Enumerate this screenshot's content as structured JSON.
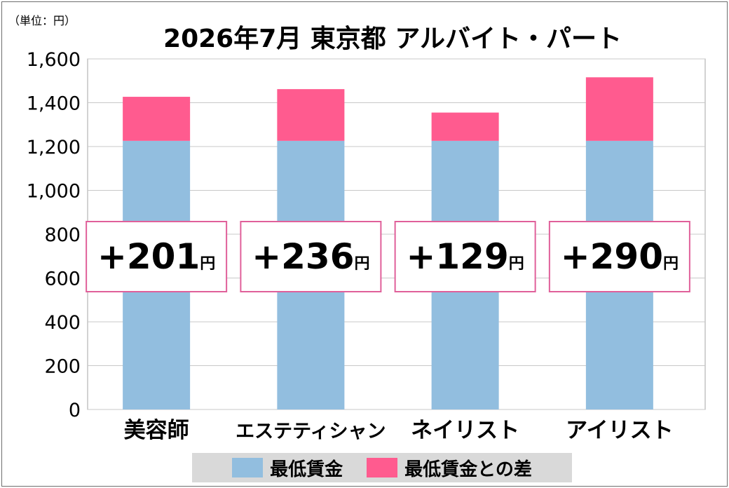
{
  "header": {
    "unit_note": "（単位：円）",
    "title": "2026年7月  東京都 アルバイト・パート"
  },
  "colors": {
    "base": "#92bedf",
    "diff": "#ff5b8f",
    "box_border": "#e0609a",
    "grid": "#c8c8c8",
    "legend_bg": "#d9d9d9"
  },
  "chart_data": {
    "type": "bar",
    "stacked": true,
    "title": "2026年7月  東京都 アルバイト・パート",
    "unit": "円",
    "categories": [
      "美容師",
      "エステティシャン",
      "ネイリスト",
      "アイリスト"
    ],
    "series": [
      {
        "name": "最低賃金",
        "values": [
          1226,
          1226,
          1226,
          1226
        ]
      },
      {
        "name": "最低賃金との差",
        "values": [
          201,
          236,
          129,
          290
        ]
      }
    ],
    "ylim": [
      0,
      1600
    ],
    "yticks": [
      0,
      200,
      400,
      600,
      800,
      1000,
      1200,
      1400,
      1600
    ],
    "ytick_labels": [
      "0",
      "200",
      "400",
      "600",
      "800",
      "1,000",
      "1,200",
      "1,400",
      "1,600"
    ],
    "diff_labels": [
      "+201",
      "+236",
      "+129",
      "+290"
    ],
    "diff_suffix": "円",
    "grid": true,
    "legend_position": "bottom"
  },
  "legend": {
    "items": [
      {
        "label": "最低賃金"
      },
      {
        "label": "最低賃金との差"
      }
    ]
  }
}
